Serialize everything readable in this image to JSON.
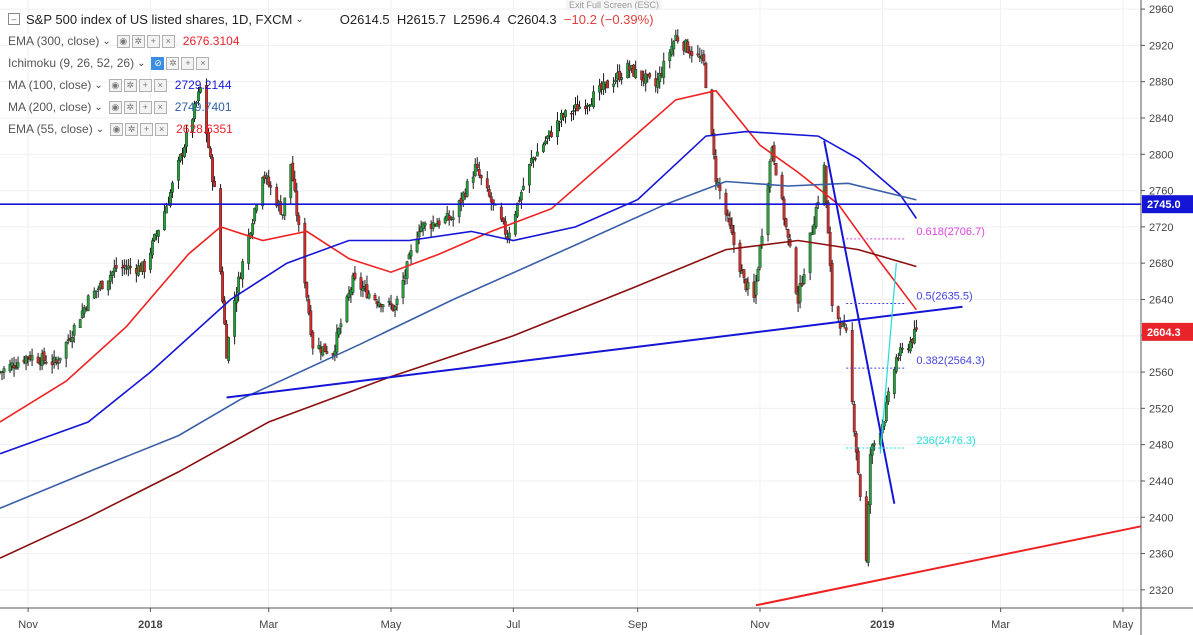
{
  "header": {
    "exit_fullscreen": "Exit Full Screen (ESC)",
    "collapse_icon": "minus-square-icon",
    "title": "S&P 500 index of US listed shares, 1D, FXCM",
    "open": "O2614.5",
    "high": "H2615.7",
    "low": "L2596.4",
    "close": "C2604.3",
    "change": "−10.2 (−0.39%)"
  },
  "indicators": [
    {
      "name": "EMA (300, close)",
      "value": "2676.3104",
      "color": "#e8232a",
      "icons": [
        "eye-icon",
        "gear-icon",
        "plus-icon",
        "close-icon"
      ]
    },
    {
      "name": "Ichimoku (9, 26, 52, 26)",
      "value": "",
      "color": "#888888",
      "icons": [
        "hidden-eye-icon",
        "gear-icon",
        "plus-icon",
        "close-icon"
      ]
    },
    {
      "name": "MA (100, close)",
      "value": "2729.2144",
      "color": "#1a1adb",
      "icons": [
        "eye-icon",
        "gear-icon",
        "plus-icon",
        "close-icon"
      ]
    },
    {
      "name": "MA (200, close)",
      "value": "2749.7401",
      "color": "#2f5fa8",
      "icons": [
        "eye-icon",
        "gear-icon",
        "plus-icon",
        "close-icon"
      ]
    },
    {
      "name": "EMA (55, close)",
      "value": "2628.6351",
      "color": "#e8232a",
      "icons": [
        "eye-icon",
        "gear-icon",
        "plus-icon",
        "close-icon"
      ]
    }
  ],
  "colors": {
    "up": "#26a03a",
    "down": "#d42a2a",
    "ema55": "#ee2222",
    "ma100": "#1515d6",
    "ma200": "#3a5fa8",
    "ema300": "#8b0f0f",
    "hline": "#1515d6",
    "trend_red": "#ee2222",
    "fib_magenta": "#dd44dd",
    "fib_blue": "#4444dd",
    "fib_cyan": "#22dddd",
    "price_tag": "#e8232a",
    "hline_tag": "#1515d6"
  },
  "chart_data": {
    "type": "candlestick",
    "title": "S&P 500 index of US listed shares, 1D, FXCM",
    "ylim": [
      2300,
      2970
    ],
    "y_ticks": [
      2320,
      2360,
      2400,
      2440,
      2480,
      2520,
      2560,
      2600,
      2640,
      2680,
      2720,
      2760,
      2800,
      2840,
      2880,
      2920,
      2960
    ],
    "x_ticks": [
      "Nov",
      "2018",
      "Mar",
      "May",
      "Jul",
      "Sep",
      "Nov",
      "2019",
      "Mar",
      "May"
    ],
    "x_range": [
      "2017-10-18",
      "2019-05-10"
    ],
    "x_tick_dates": [
      "2017-11-01",
      "2018-01-01",
      "2018-03-01",
      "2018-05-01",
      "2018-07-01",
      "2018-09-01",
      "2018-11-01",
      "2019-01-01",
      "2019-03-01",
      "2019-05-01"
    ],
    "close_path": [
      [
        "2017-10-18",
        2560
      ],
      [
        "2017-11-01",
        2578
      ],
      [
        "2017-11-15",
        2570
      ],
      [
        "2017-12-01",
        2640
      ],
      [
        "2017-12-15",
        2675
      ],
      [
        "2017-12-29",
        2675
      ],
      [
        "2018-01-10",
        2750
      ],
      [
        "2018-01-26",
        2872
      ],
      [
        "2018-02-02",
        2760
      ],
      [
        "2018-02-08",
        2582
      ],
      [
        "2018-02-12",
        2640
      ],
      [
        "2018-02-26",
        2780
      ],
      [
        "2018-03-08",
        2735
      ],
      [
        "2018-03-12",
        2790
      ],
      [
        "2018-03-23",
        2590
      ],
      [
        "2018-04-02",
        2582
      ],
      [
        "2018-04-12",
        2660
      ],
      [
        "2018-04-24",
        2640
      ],
      [
        "2018-05-03",
        2630
      ],
      [
        "2018-05-15",
        2720
      ],
      [
        "2018-06-01",
        2730
      ],
      [
        "2018-06-12",
        2785
      ],
      [
        "2018-06-28",
        2710
      ],
      [
        "2018-07-10",
        2793
      ],
      [
        "2018-07-25",
        2840
      ],
      [
        "2018-08-08",
        2860
      ],
      [
        "2018-08-27",
        2895
      ],
      [
        "2018-09-10",
        2875
      ],
      [
        "2018-09-20",
        2930
      ],
      [
        "2018-10-04",
        2900
      ],
      [
        "2018-10-10",
        2775
      ],
      [
        "2018-10-24",
        2660
      ],
      [
        "2018-10-29",
        2640
      ],
      [
        "2018-11-07",
        2810
      ],
      [
        "2018-11-20",
        2640
      ],
      [
        "2018-12-03",
        2785
      ],
      [
        "2018-12-07",
        2635
      ],
      [
        "2018-12-14",
        2600
      ],
      [
        "2018-12-24",
        2350
      ],
      [
        "2018-12-26",
        2470
      ],
      [
        "2019-01-02",
        2510
      ],
      [
        "2019-01-08",
        2575
      ],
      [
        "2019-01-14",
        2590
      ],
      [
        "2019-01-18",
        2604.3
      ]
    ],
    "series": [
      {
        "name": "EMA (55, close)",
        "points": [
          [
            "2017-10-18",
            2505
          ],
          [
            "2017-11-20",
            2550
          ],
          [
            "2017-12-20",
            2610
          ],
          [
            "2018-01-20",
            2690
          ],
          [
            "2018-02-05",
            2720
          ],
          [
            "2018-02-26",
            2705
          ],
          [
            "2018-03-20",
            2715
          ],
          [
            "2018-04-10",
            2685
          ],
          [
            "2018-05-01",
            2670
          ],
          [
            "2018-05-25",
            2690
          ],
          [
            "2018-06-20",
            2715
          ],
          [
            "2018-07-20",
            2740
          ],
          [
            "2018-08-20",
            2800
          ],
          [
            "2018-09-20",
            2860
          ],
          [
            "2018-10-10",
            2870
          ],
          [
            "2018-11-01",
            2810
          ],
          [
            "2018-11-20",
            2780
          ],
          [
            "2018-12-10",
            2745
          ],
          [
            "2018-12-28",
            2690
          ],
          [
            "2019-01-18",
            2628.6
          ]
        ]
      },
      {
        "name": "MA (100, close)",
        "points": [
          [
            "2017-10-18",
            2470
          ],
          [
            "2017-12-01",
            2505
          ],
          [
            "2018-01-01",
            2560
          ],
          [
            "2018-02-10",
            2640
          ],
          [
            "2018-03-10",
            2680
          ],
          [
            "2018-04-10",
            2705
          ],
          [
            "2018-05-10",
            2705
          ],
          [
            "2018-06-10",
            2715
          ],
          [
            "2018-07-01",
            2705
          ],
          [
            "2018-08-01",
            2720
          ],
          [
            "2018-09-01",
            2750
          ],
          [
            "2018-10-05",
            2820
          ],
          [
            "2018-10-25",
            2825
          ],
          [
            "2018-11-30",
            2820
          ],
          [
            "2018-12-20",
            2795
          ],
          [
            "2019-01-10",
            2755
          ],
          [
            "2019-01-18",
            2729.2
          ]
        ]
      },
      {
        "name": "MA (200, close)",
        "points": [
          [
            "2017-10-18",
            2410
          ],
          [
            "2017-12-01",
            2450
          ],
          [
            "2018-01-15",
            2490
          ],
          [
            "2018-02-15",
            2530
          ],
          [
            "2018-04-15",
            2590
          ],
          [
            "2018-06-01",
            2640
          ],
          [
            "2018-08-01",
            2700
          ],
          [
            "2018-09-15",
            2745
          ],
          [
            "2018-10-15",
            2770
          ],
          [
            "2018-11-15",
            2765
          ],
          [
            "2018-12-15",
            2768
          ],
          [
            "2019-01-18",
            2749.7
          ]
        ]
      },
      {
        "name": "EMA (300, close)",
        "points": [
          [
            "2017-10-18",
            2355
          ],
          [
            "2017-12-01",
            2400
          ],
          [
            "2018-01-15",
            2450
          ],
          [
            "2018-03-01",
            2505
          ],
          [
            "2018-05-01",
            2555
          ],
          [
            "2018-07-01",
            2600
          ],
          [
            "2018-09-01",
            2655
          ],
          [
            "2018-10-15",
            2695
          ],
          [
            "2018-11-20",
            2705
          ],
          [
            "2018-12-20",
            2695
          ],
          [
            "2019-01-18",
            2676.3
          ]
        ]
      }
    ],
    "horizontal_line": {
      "value": 2745.0,
      "label": "2745.0"
    },
    "last_price": {
      "value": 2604.3,
      "label": "2604.3"
    },
    "trendlines": [
      {
        "color": "blue",
        "from": [
          "2018-02-08",
          2532
        ],
        "to": [
          "2019-02-10",
          2632
        ]
      },
      {
        "color": "blue",
        "from": [
          "2018-12-03",
          2815
        ],
        "to": [
          "2019-01-07",
          2415
        ]
      },
      {
        "color": "red",
        "from": [
          "2018-10-30",
          2303
        ],
        "to": [
          "2019-05-10",
          2390
        ]
      }
    ],
    "fibonacci": [
      {
        "label": "0.618(2706.7)",
        "value": 2706.7,
        "color": "magenta"
      },
      {
        "label": "0.5(2635.5)",
        "value": 2635.5,
        "color": "blue"
      },
      {
        "label": "0.382(2564.3)",
        "value": 2564.3,
        "color": "blue"
      },
      {
        "label": "236(2476.3)",
        "value": 2476.3,
        "color": "cyan"
      }
    ]
  }
}
